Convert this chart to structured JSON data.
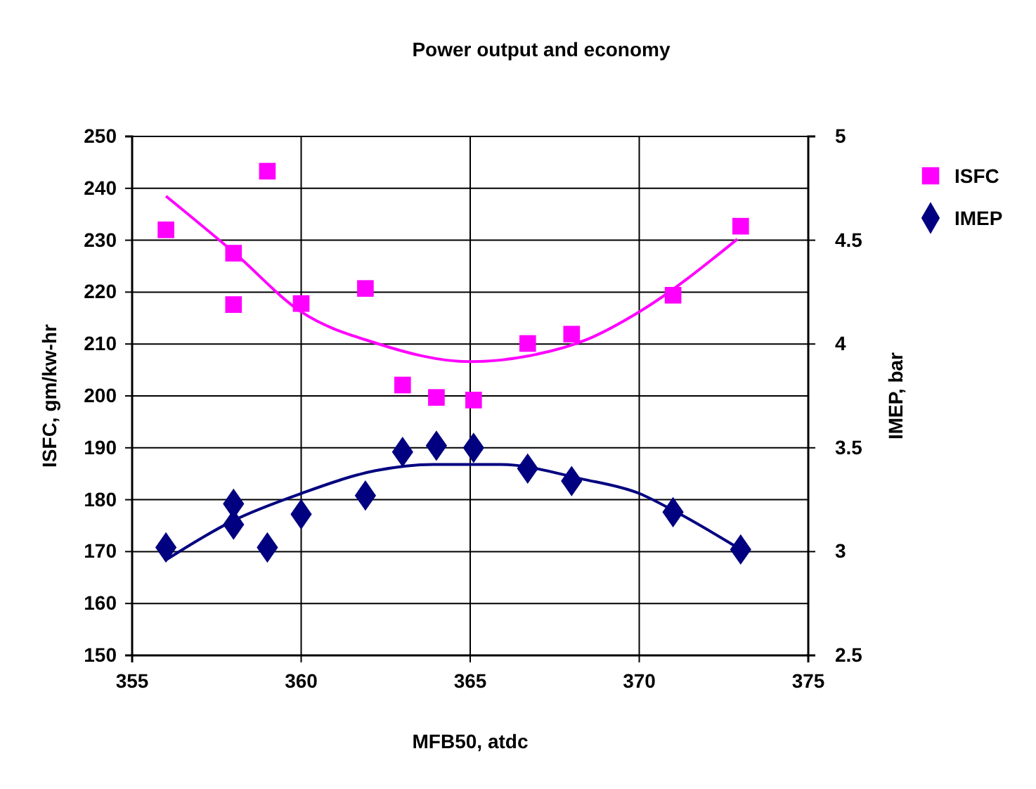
{
  "chart_data": {
    "type": "scatter",
    "title": "Power output and economy",
    "xlabel": "MFB50, atdc",
    "ylabel": "ISFC, gm/kw-hr",
    "y2label": "IMEP, bar",
    "xlim": [
      355,
      375
    ],
    "xticks": [
      355,
      360,
      365,
      370,
      375
    ],
    "ylim": [
      150,
      250
    ],
    "yticks": [
      150,
      160,
      170,
      180,
      190,
      200,
      210,
      220,
      230,
      240,
      250
    ],
    "y2lim": [
      2.5,
      5
    ],
    "y2ticks": [
      2.5,
      3,
      3.5,
      4,
      4.5,
      5
    ],
    "grid": true,
    "legend": "right",
    "series": [
      {
        "name": "ISFC",
        "marker": "square",
        "color": "#ff00ff",
        "x": [
          356,
          358,
          358,
          359,
          360,
          361.9,
          363,
          364,
          365.1,
          366.7,
          368,
          371,
          373
        ],
        "values": [
          232,
          227.5,
          217.6,
          243.3,
          217.8,
          220.7,
          202.1,
          199.7,
          199.2,
          210.1,
          211.9,
          219.4,
          232.7
        ]
      },
      {
        "name": "IMEP",
        "marker": "diamond",
        "color": "#000080",
        "axis": "y2",
        "x": [
          356,
          358,
          358,
          359,
          360,
          361.9,
          363,
          364,
          365.1,
          366.7,
          368,
          371,
          373
        ],
        "values": [
          3.02,
          3.23,
          3.13,
          3.02,
          3.18,
          3.27,
          3.48,
          3.51,
          3.5,
          3.4,
          3.34,
          3.19,
          3.01
        ]
      },
      {
        "type": "line",
        "color": "#ff00ff",
        "x": [
          356,
          358,
          360,
          362.2,
          365,
          366.8,
          368.5,
          370,
          372.9
        ],
        "values": [
          238.5,
          227.7,
          216.2,
          210.2,
          206.6,
          207.8,
          211,
          216.2,
          230.2
        ]
      },
      {
        "type": "line",
        "color": "#000080",
        "axis": "y2",
        "x": [
          356,
          358,
          360,
          362.2,
          363.9,
          365.9,
          368.3,
          370,
          371.1,
          372.9
        ],
        "values": [
          2.96,
          3.15,
          3.28,
          3.39,
          3.42,
          3.42,
          3.35,
          3.28,
          3.19,
          3.02
        ]
      }
    ]
  }
}
